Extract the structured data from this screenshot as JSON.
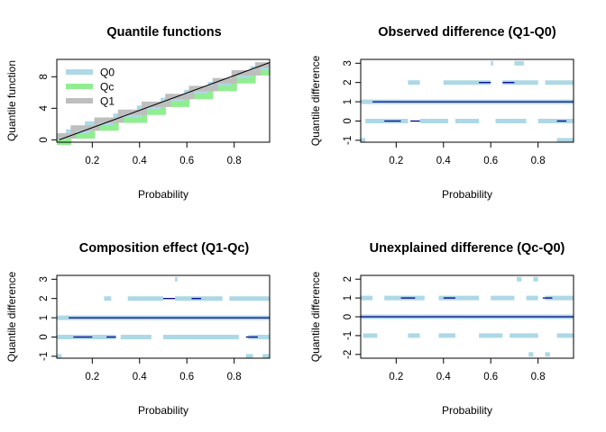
{
  "chart_data": [
    {
      "type": "line",
      "title": "Quantile functions",
      "xlabel": "Probability",
      "ylabel": "Quantile function",
      "xlim": [
        0.05,
        0.95
      ],
      "ylim": [
        -0.3,
        10.2
      ],
      "xticks": [
        0.2,
        0.4,
        0.6,
        0.8
      ],
      "yticks": [
        0,
        4,
        8
      ],
      "legend": {
        "position": "top-left",
        "items": [
          {
            "name": "Q0",
            "color": "#add8e6"
          },
          {
            "name": "Qc",
            "color": "#90ee90"
          },
          {
            "name": "Q1",
            "color": "#bebebe"
          }
        ]
      },
      "series": [
        {
          "name": "Q0",
          "color": "#add8e6",
          "points": [
            [
              0.05,
              0
            ],
            [
              0.1,
              0
            ],
            [
              0.1,
              1
            ],
            [
              0.18,
              1
            ],
            [
              0.18,
              2
            ],
            [
              0.3,
              2
            ],
            [
              0.3,
              3
            ],
            [
              0.4,
              3
            ],
            [
              0.4,
              4
            ],
            [
              0.5,
              4
            ],
            [
              0.5,
              5
            ],
            [
              0.6,
              5
            ],
            [
              0.6,
              6
            ],
            [
              0.7,
              6
            ],
            [
              0.7,
              7
            ],
            [
              0.8,
              7
            ],
            [
              0.8,
              8
            ],
            [
              0.88,
              8
            ],
            [
              0.88,
              9
            ],
            [
              0.95,
              9
            ]
          ]
        },
        {
          "name": "Qc",
          "color": "#90ee90",
          "points": [
            [
              0.05,
              -0.3
            ],
            [
              0.1,
              -0.3
            ],
            [
              0.1,
              0.5
            ],
            [
              0.2,
              0.5
            ],
            [
              0.2,
              1.5
            ],
            [
              0.3,
              1.5
            ],
            [
              0.3,
              2.5
            ],
            [
              0.42,
              2.5
            ],
            [
              0.42,
              3.5
            ],
            [
              0.5,
              3.5
            ],
            [
              0.5,
              4.5
            ],
            [
              0.6,
              4.5
            ],
            [
              0.6,
              5.5
            ],
            [
              0.7,
              5.5
            ],
            [
              0.7,
              6.5
            ],
            [
              0.8,
              6.5
            ],
            [
              0.8,
              7.5
            ],
            [
              0.88,
              7.5
            ],
            [
              0.88,
              8.5
            ],
            [
              0.95,
              8.5
            ]
          ]
        },
        {
          "name": "Q1",
          "color": "#bebebe",
          "points": [
            [
              0.05,
              0.5
            ],
            [
              0.12,
              0.5
            ],
            [
              0.12,
              1.5
            ],
            [
              0.22,
              1.5
            ],
            [
              0.22,
              2.5
            ],
            [
              0.32,
              2.5
            ],
            [
              0.32,
              3.5
            ],
            [
              0.42,
              3.5
            ],
            [
              0.42,
              4.5
            ],
            [
              0.52,
              4.5
            ],
            [
              0.52,
              5.5
            ],
            [
              0.62,
              5.5
            ],
            [
              0.62,
              6.5
            ],
            [
              0.72,
              6.5
            ],
            [
              0.72,
              7.5
            ],
            [
              0.8,
              7.5
            ],
            [
              0.8,
              8.5
            ],
            [
              0.9,
              8.5
            ],
            [
              0.9,
              9.5
            ],
            [
              0.95,
              9.5
            ]
          ]
        },
        {
          "name": "",
          "color": "#000000",
          "points": [
            [
              0.06,
              0
            ],
            [
              0.95,
              9.8
            ]
          ]
        }
      ]
    },
    {
      "type": "line",
      "title": "Observed difference (Q1-Q0)",
      "xlabel": "Probability",
      "ylabel": "Quantile difference",
      "xlim": [
        0.05,
        0.95
      ],
      "ylim": [
        -1.1,
        3.2
      ],
      "xticks": [
        0.2,
        0.4,
        0.6,
        0.8
      ],
      "yticks": [
        -1,
        0,
        1,
        2,
        3
      ],
      "series": [
        {
          "name": "",
          "color": "#add8e6",
          "values_by_level": {
            "-1": [
              [
                0.05,
                0.07
              ],
              [
                0.88,
                0.95
              ]
            ],
            "0": [
              [
                0.07,
                0.25
              ],
              [
                0.3,
                0.42
              ],
              [
                0.45,
                0.55
              ],
              [
                0.62,
                0.75
              ],
              [
                0.8,
                0.95
              ]
            ],
            "1": [
              [
                0.05,
                0.95
              ]
            ],
            "2": [
              [
                0.25,
                0.3
              ],
              [
                0.4,
                0.6
              ],
              [
                0.65,
                0.8
              ],
              [
                0.83,
                0.95
              ]
            ],
            "3": [
              [
                0.6,
                0.61
              ],
              [
                0.7,
                0.74
              ]
            ]
          }
        },
        {
          "name": "",
          "color": "#00008b",
          "values_by_level": {
            "0": [
              [
                0.15,
                0.22
              ],
              [
                0.26,
                0.3
              ],
              [
                0.88,
                0.92
              ]
            ],
            "1": [
              [
                0.1,
                0.95
              ]
            ],
            "2": [
              [
                0.55,
                0.6
              ],
              [
                0.65,
                0.7
              ]
            ]
          }
        }
      ]
    },
    {
      "type": "line",
      "title": "Composition effect (Q1-Qc)",
      "xlabel": "Probability",
      "ylabel": "Quantile difference",
      "xlim": [
        0.05,
        0.95
      ],
      "ylim": [
        -1.1,
        3.2
      ],
      "xticks": [
        0.2,
        0.4,
        0.6,
        0.8
      ],
      "yticks": [
        -1,
        0,
        1,
        2,
        3
      ],
      "series": [
        {
          "name": "",
          "color": "#add8e6",
          "values_by_level": {
            "-1": [
              [
                0.05,
                0.07
              ],
              [
                0.85,
                0.88
              ],
              [
                0.92,
                0.95
              ]
            ],
            "0": [
              [
                0.05,
                0.3
              ],
              [
                0.32,
                0.45
              ],
              [
                0.5,
                0.82
              ],
              [
                0.86,
                0.95
              ]
            ],
            "1": [
              [
                0.05,
                0.95
              ]
            ],
            "2": [
              [
                0.25,
                0.28
              ],
              [
                0.35,
                0.5
              ],
              [
                0.55,
                0.75
              ],
              [
                0.78,
                0.95
              ]
            ],
            "3": [
              [
                0.55,
                0.56
              ]
            ]
          }
        },
        {
          "name": "",
          "color": "#00008b",
          "values_by_level": {
            "0": [
              [
                0.12,
                0.2
              ],
              [
                0.26,
                0.3
              ],
              [
                0.85,
                0.9
              ]
            ],
            "1": [
              [
                0.1,
                0.95
              ]
            ],
            "2": [
              [
                0.5,
                0.55
              ],
              [
                0.62,
                0.66
              ]
            ]
          }
        }
      ]
    },
    {
      "type": "line",
      "title": "Unexplained difference (Qc-Q0)",
      "xlabel": "Probability",
      "ylabel": "Quantile difference",
      "xlim": [
        0.05,
        0.95
      ],
      "ylim": [
        -2.2,
        2.2
      ],
      "xticks": [
        0.2,
        0.4,
        0.6,
        0.8
      ],
      "yticks": [
        -2,
        -1,
        0,
        1,
        2
      ],
      "series": [
        {
          "name": "",
          "color": "#add8e6",
          "values_by_level": {
            "-2": [
              [
                0.76,
                0.78
              ],
              [
                0.83,
                0.85
              ]
            ],
            "-1": [
              [
                0.06,
                0.12
              ],
              [
                0.25,
                0.3
              ],
              [
                0.38,
                0.45
              ],
              [
                0.55,
                0.65
              ],
              [
                0.68,
                0.8
              ],
              [
                0.88,
                0.95
              ]
            ],
            "0": [
              [
                0.05,
                0.95
              ]
            ],
            "1": [
              [
                0.05,
                0.1
              ],
              [
                0.15,
                0.32
              ],
              [
                0.38,
                0.55
              ],
              [
                0.6,
                0.7
              ],
              [
                0.75,
                0.8
              ],
              [
                0.83,
                0.95
              ]
            ],
            "2": [
              [
                0.71,
                0.73
              ],
              [
                0.78,
                0.8
              ]
            ]
          }
        },
        {
          "name": "",
          "color": "#00008b",
          "values_by_level": {
            "0": [
              [
                0.05,
                0.95
              ]
            ],
            "1": [
              [
                0.22,
                0.28
              ],
              [
                0.4,
                0.45
              ],
              [
                0.82,
                0.86
              ]
            ]
          }
        }
      ]
    }
  ]
}
